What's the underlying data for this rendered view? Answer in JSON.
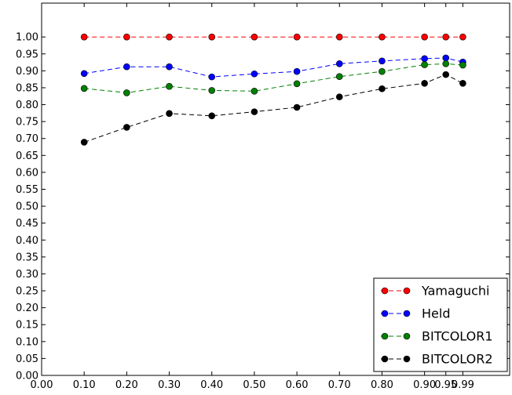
{
  "chart_data": {
    "type": "line",
    "title": "",
    "xlabel": "",
    "ylabel": "",
    "xlim": [
      0.0,
      1.1
    ],
    "ylim": [
      0.0,
      1.1
    ],
    "xticks": [
      0.0,
      0.1,
      0.2,
      0.3,
      0.4,
      0.5,
      0.6,
      0.7,
      0.8,
      0.9,
      0.95,
      0.99
    ],
    "xtick_labels": [
      "0.00",
      "0.10",
      "0.20",
      "0.30",
      "0.40",
      "0.50",
      "0.60",
      "0.70",
      "0.80",
      "0.90",
      "0.95",
      "0.99"
    ],
    "yticks": [
      0.0,
      0.05,
      0.1,
      0.15,
      0.2,
      0.25,
      0.3,
      0.35,
      0.4,
      0.45,
      0.5,
      0.55,
      0.6,
      0.65,
      0.7,
      0.75,
      0.8,
      0.85,
      0.9,
      0.95,
      1.0
    ],
    "ytick_labels": [
      "0.00",
      "0.05",
      "0.10",
      "0.15",
      "0.20",
      "0.25",
      "0.30",
      "0.35",
      "0.40",
      "0.45",
      "0.50",
      "0.55",
      "0.60",
      "0.65",
      "0.70",
      "0.75",
      "0.80",
      "0.85",
      "0.90",
      "0.95",
      "1.00"
    ],
    "grid": false,
    "legend_position": "lower-right",
    "x": [
      0.1,
      0.2,
      0.3,
      0.4,
      0.5,
      0.6,
      0.7,
      0.8,
      0.9,
      0.95,
      0.99
    ],
    "series": [
      {
        "name": "Yamaguchi",
        "color": "#ff0000",
        "values": [
          1.0,
          1.0,
          1.0,
          1.0,
          1.0,
          1.0,
          1.0,
          1.0,
          1.0,
          1.0,
          1.0
        ]
      },
      {
        "name": "Held",
        "color": "#0000ff",
        "values": [
          0.892,
          0.912,
          0.912,
          0.882,
          0.891,
          0.898,
          0.921,
          0.929,
          0.936,
          0.938,
          0.926
        ]
      },
      {
        "name": "BITCOLOR1",
        "color": "#008000",
        "values": [
          0.848,
          0.835,
          0.854,
          0.842,
          0.84,
          0.862,
          0.883,
          0.898,
          0.918,
          0.921,
          0.917
        ]
      },
      {
        "name": "BITCOLOR2",
        "color": "#000000",
        "values": [
          0.689,
          0.733,
          0.774,
          0.767,
          0.779,
          0.792,
          0.823,
          0.847,
          0.863,
          0.889,
          0.863
        ]
      }
    ]
  }
}
